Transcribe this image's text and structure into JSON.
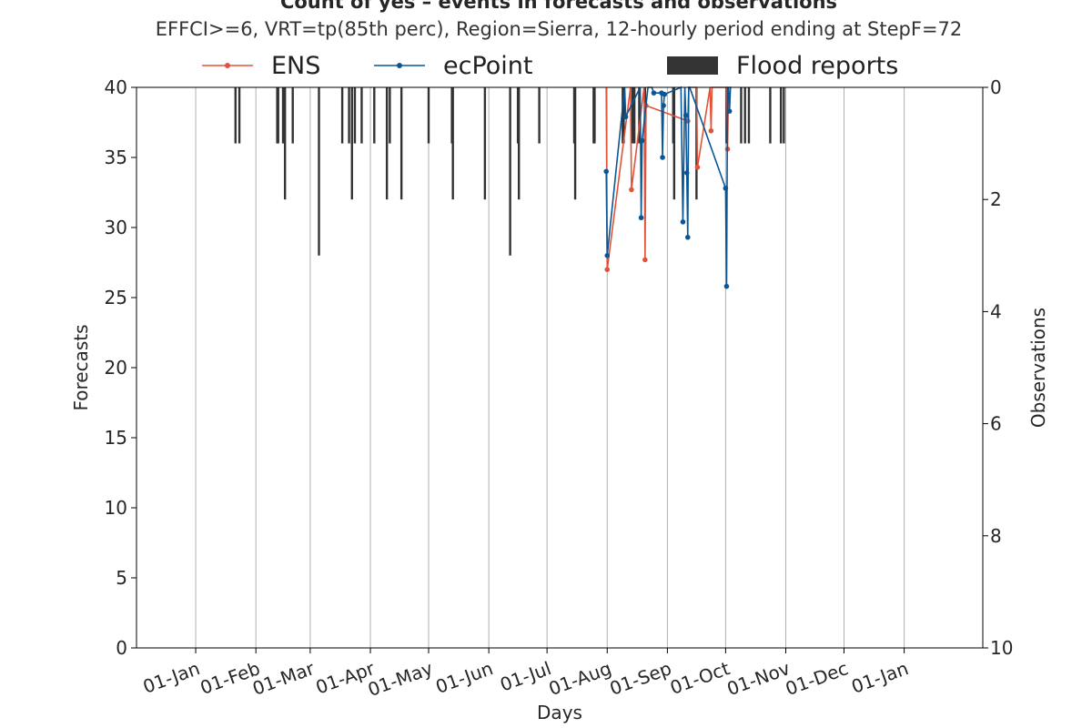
{
  "chart_data": {
    "type": "line+bar",
    "title": "Count of yes – events in forecasts and observations",
    "subtitle": "EFFCI>=6, VRT=tp(85th perc), Region=Sierra, 12-hourly period ending at StepF=72",
    "xlabel": "Days",
    "ylabel_left": "Forecasts",
    "ylabel_right": "Observations",
    "x_tick_labels": [
      "01-Jan",
      "01-Feb",
      "01-Mar",
      "01-Apr",
      "01-May",
      "01-Jun",
      "01-Jul",
      "01-Aug",
      "01-Sep",
      "01-Oct",
      "01-Nov",
      "01-Dec",
      "01-Jan"
    ],
    "y_left_ticks": [
      "0",
      "5",
      "10",
      "15",
      "20",
      "25",
      "30",
      "35",
      "40"
    ],
    "y_right_ticks": [
      "0",
      "2",
      "4",
      "6",
      "8",
      "10"
    ],
    "ylim_left": [
      0,
      40
    ],
    "ylim_right_inverted": [
      10,
      0
    ],
    "x_grid": true,
    "legend": {
      "position": "top",
      "entries": [
        "ENS",
        "ecPoint",
        "Flood reports"
      ]
    },
    "colors": {
      "ens": "#e0533a",
      "ecpoint": "#0a5694",
      "flood": "#333333",
      "grid": "#b0b0b0"
    },
    "series": [
      {
        "name": "ENS",
        "x_day": [
          211.5,
          212,
          224,
          224.5,
          231,
          231.5,
          232,
          253.5,
          254,
          258,
          258.5,
          265,
          265.5,
          266,
          273.5,
          274,
          274.5
        ],
        "y": [
          40,
          27,
          40,
          32.7,
          40,
          27.7,
          38.7,
          37.6,
          40,
          40,
          34.3,
          40,
          36.9,
          40,
          40,
          35.6,
          40
        ]
      },
      {
        "name": "ecPoint",
        "x_day": [
          211.5,
          212,
          221,
          221.5,
          229,
          229.5,
          230,
          233,
          235,
          236,
          240,
          240.5,
          241,
          241.5,
          250,
          251,
          252,
          252.5,
          253,
          253.5,
          254,
          254.5,
          273,
          273.5,
          274,
          274.5,
          275,
          275.5,
          276
        ],
        "y": [
          34,
          28,
          40,
          37.9,
          40,
          30.7,
          36.2,
          40,
          40,
          39.6,
          39.6,
          35,
          38.7,
          39.5,
          40,
          30.4,
          40,
          38,
          33.9,
          29.3,
          40,
          40,
          32.8,
          25.8,
          40,
          40,
          38.3,
          40,
          40
        ]
      }
    ],
    "flood_reports": {
      "x_day": [
        20.5,
        22.5,
        42,
        42.5,
        45,
        46,
        50,
        63.5,
        75.5,
        79,
        80.5,
        82,
        85.5,
        92,
        98.5,
        100,
        106,
        120,
        132,
        132.5,
        149,
        162,
        166,
        166.5,
        177,
        195,
        195.5,
        205,
        205.5,
        220,
        220.5,
        225,
        226,
        228.5,
        231.5,
        246,
        246.5,
        258,
        273.5,
        281,
        283,
        285,
        296,
        301.5,
        303
      ],
      "counts": [
        1,
        1,
        1,
        1,
        1,
        2,
        1,
        3,
        1,
        1,
        2,
        1,
        1,
        1,
        2,
        1,
        2,
        1,
        1,
        2,
        2,
        3,
        1,
        2,
        1,
        1,
        2,
        1,
        1,
        1,
        1,
        1,
        1,
        1,
        1,
        1,
        2,
        2,
        1,
        1,
        1,
        1,
        1,
        1,
        1
      ]
    }
  }
}
